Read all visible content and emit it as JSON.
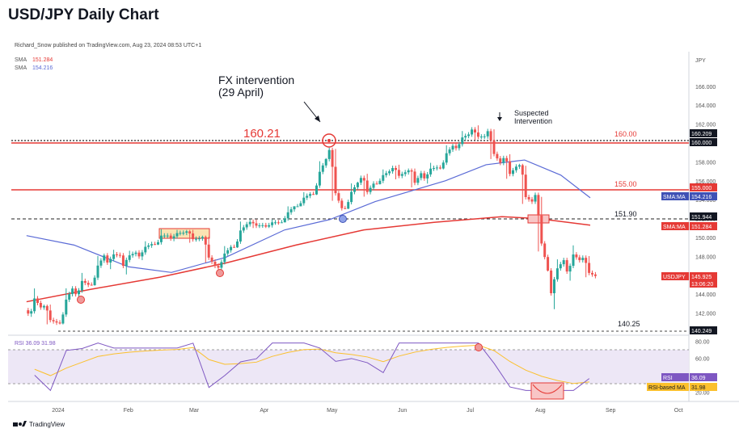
{
  "header": {
    "title": "USD/JPY Daily Chart",
    "published": "Richard_Snow published on TradingView.com, Aug 23, 2024 08:53 UTC+1"
  },
  "legend": {
    "sma1_label": "SMA",
    "sma1_value": "151.284",
    "sma2_label": "SMA",
    "sma2_value": "154.216"
  },
  "price_axis": {
    "currency": "JPY",
    "ticks": [
      "166.000",
      "164.000",
      "162.000",
      "160.000",
      "158.000",
      "156.000",
      "154.000",
      "152.000",
      "150.000",
      "148.000",
      "146.000",
      "144.000",
      "142.000",
      "140.000"
    ]
  },
  "rsi_axis": {
    "ticks": [
      "80.00",
      "60.00",
      "40.00",
      "20.00"
    ]
  },
  "time_axis": {
    "labels": [
      "2024",
      "Feb",
      "Mar",
      "Apr",
      "May",
      "Jun",
      "Jul",
      "Aug",
      "Sep",
      "Oct"
    ]
  },
  "annotations": {
    "fx_intervention_line1": "FX intervention",
    "fx_intervention_line2": "(29 April)",
    "suspected_line1": "Suspected",
    "suspected_line2": "Intervention",
    "level_160_21": "160.21",
    "level_160": "160.00",
    "level_155": "155.00",
    "level_151_90": "151.90",
    "level_140_25": "140.25"
  },
  "price_tags": {
    "t160209": "160.209",
    "t160000": "160.000",
    "t155000": "155.000",
    "sma_blue_label": "SMA:MA",
    "sma_blue_value": "154.216",
    "t151944": "151.944",
    "sma_red_label": "SMA:MA",
    "sma_red_value": "151.284",
    "symbol": "USDJPY",
    "last_price": "145.925",
    "countdown": "13:06:20",
    "t140249": "140.249"
  },
  "rsi": {
    "legend": "RSI 36.09 31.98",
    "tag_rsi_label": "RSI",
    "tag_rsi_value": "36.09",
    "tag_ma_label": "RSI-based MA",
    "tag_ma_value": "31.98"
  },
  "footer": {
    "brand": "TradingView"
  },
  "colors": {
    "up": "#26a69a",
    "down": "#ef5350",
    "sma200": "#e53935",
    "sma50": "#5b6bd6",
    "rsi_line": "#7e57c2",
    "rsi_ma": "#fbc02d",
    "level": "#e53935"
  },
  "chart_data": {
    "type": "candlestick",
    "title": "USD/JPY Daily Chart",
    "price_range": [
      139.4,
      167.5
    ],
    "rsi_range": [
      10,
      95
    ],
    "horizontal_levels": [
      160.21,
      160.0,
      155.0,
      151.9,
      140.25
    ],
    "candles_weekly_approx": [
      {
        "date": "2023-12-18",
        "o": 142.3,
        "h": 144.9,
        "l": 141.6,
        "c": 142.6
      },
      {
        "date": "2023-12-25",
        "o": 142.6,
        "h": 142.9,
        "l": 140.25,
        "c": 141.0
      },
      {
        "date": "2024-01-01",
        "o": 141.0,
        "h": 145.0,
        "l": 140.8,
        "c": 144.6
      },
      {
        "date": "2024-01-08",
        "o": 144.6,
        "h": 146.4,
        "l": 143.4,
        "c": 145.0
      },
      {
        "date": "2024-01-15",
        "o": 145.0,
        "h": 148.3,
        "l": 144.9,
        "c": 148.1
      },
      {
        "date": "2024-01-22",
        "o": 148.1,
        "h": 148.7,
        "l": 146.6,
        "c": 148.1
      },
      {
        "date": "2024-01-29",
        "o": 148.1,
        "h": 148.6,
        "l": 145.9,
        "c": 148.4
      },
      {
        "date": "2024-02-05",
        "o": 148.4,
        "h": 149.6,
        "l": 147.6,
        "c": 149.3
      },
      {
        "date": "2024-02-12",
        "o": 149.3,
        "h": 150.9,
        "l": 149.2,
        "c": 150.2
      },
      {
        "date": "2024-02-19",
        "o": 150.2,
        "h": 150.8,
        "l": 149.6,
        "c": 150.5
      },
      {
        "date": "2024-02-26",
        "o": 150.5,
        "h": 150.8,
        "l": 149.2,
        "c": 149.9
      },
      {
        "date": "2024-03-04",
        "o": 149.9,
        "h": 150.2,
        "l": 146.5,
        "c": 147.0
      },
      {
        "date": "2024-03-11",
        "o": 147.0,
        "h": 149.2,
        "l": 146.6,
        "c": 149.0
      },
      {
        "date": "2024-03-18",
        "o": 149.0,
        "h": 151.9,
        "l": 148.9,
        "c": 151.4
      },
      {
        "date": "2024-03-25",
        "o": 151.4,
        "h": 151.9,
        "l": 151.0,
        "c": 151.3
      },
      {
        "date": "2024-04-01",
        "o": 151.3,
        "h": 151.9,
        "l": 151.0,
        "c": 151.6
      },
      {
        "date": "2024-04-08",
        "o": 151.6,
        "h": 153.3,
        "l": 151.6,
        "c": 153.3
      },
      {
        "date": "2024-04-15",
        "o": 153.3,
        "h": 154.8,
        "l": 153.3,
        "c": 154.6
      },
      {
        "date": "2024-04-22",
        "o": 154.6,
        "h": 158.4,
        "l": 154.5,
        "c": 158.3
      },
      {
        "date": "2024-04-29",
        "o": 158.3,
        "h": 160.21,
        "l": 151.9,
        "c": 153.1
      },
      {
        "date": "2024-05-06",
        "o": 153.1,
        "h": 155.9,
        "l": 153.0,
        "c": 155.8
      },
      {
        "date": "2024-05-13",
        "o": 155.8,
        "h": 156.8,
        "l": 153.6,
        "c": 155.7
      },
      {
        "date": "2024-05-20",
        "o": 155.7,
        "h": 157.2,
        "l": 155.6,
        "c": 157.0
      },
      {
        "date": "2024-05-27",
        "o": 157.0,
        "h": 157.7,
        "l": 155.9,
        "c": 156.9
      },
      {
        "date": "2024-06-03",
        "o": 156.9,
        "h": 157.3,
        "l": 154.6,
        "c": 156.8
      },
      {
        "date": "2024-06-10",
        "o": 156.8,
        "h": 157.9,
        "l": 155.7,
        "c": 157.4
      },
      {
        "date": "2024-06-17",
        "o": 157.4,
        "h": 159.9,
        "l": 157.2,
        "c": 159.7
      },
      {
        "date": "2024-06-24",
        "o": 159.7,
        "h": 161.3,
        "l": 159.2,
        "c": 160.9
      },
      {
        "date": "2024-07-01",
        "o": 160.9,
        "h": 161.95,
        "l": 160.2,
        "c": 160.7
      },
      {
        "date": "2024-07-08",
        "o": 160.7,
        "h": 161.8,
        "l": 157.4,
        "c": 157.9
      },
      {
        "date": "2024-07-15",
        "o": 157.9,
        "h": 158.9,
        "l": 155.4,
        "c": 157.5
      },
      {
        "date": "2024-07-22",
        "o": 157.5,
        "h": 157.8,
        "l": 151.9,
        "c": 153.8
      },
      {
        "date": "2024-07-29",
        "o": 153.8,
        "h": 155.2,
        "l": 146.4,
        "c": 146.5
      },
      {
        "date": "2024-08-05",
        "o": 146.5,
        "h": 147.9,
        "l": 141.7,
        "c": 147.6
      },
      {
        "date": "2024-08-12",
        "o": 147.6,
        "h": 149.4,
        "l": 145.2,
        "c": 147.6
      },
      {
        "date": "2024-08-19",
        "o": 147.6,
        "h": 148.1,
        "l": 145.2,
        "c": 145.925
      }
    ],
    "sma_series": [
      {
        "name": "SMA 151.284",
        "color": "#e53935",
        "points": [
          [
            "2023-12-18",
            143.2
          ],
          [
            "2024-01-15",
            144.5
          ],
          [
            "2024-02-15",
            145.8
          ],
          [
            "2024-03-15",
            147.3
          ],
          [
            "2024-04-15",
            149.2
          ],
          [
            "2024-05-15",
            150.8
          ],
          [
            "2024-06-15",
            151.6
          ],
          [
            "2024-07-15",
            152.2
          ],
          [
            "2024-07-31",
            152.0
          ],
          [
            "2024-08-23",
            151.3
          ]
        ]
      },
      {
        "name": "SMA 154.216",
        "color": "#5b6bd6",
        "points": [
          [
            "2023-12-18",
            150.2
          ],
          [
            "2024-01-08",
            149.2
          ],
          [
            "2024-02-01",
            146.9
          ],
          [
            "2024-02-20",
            146.3
          ],
          [
            "2024-03-15",
            147.9
          ],
          [
            "2024-04-10",
            150.8
          ],
          [
            "2024-04-30",
            151.9
          ],
          [
            "2024-05-20",
            153.8
          ],
          [
            "2024-06-20",
            156.0
          ],
          [
            "2024-07-08",
            157.7
          ],
          [
            "2024-07-25",
            158.2
          ],
          [
            "2024-08-10",
            156.6
          ],
          [
            "2024-08-23",
            154.2
          ]
        ]
      }
    ],
    "rsi_series": [
      {
        "name": "RSI",
        "value": 36.09
      },
      {
        "name": "RSI-based MA",
        "value": 31.98
      }
    ]
  }
}
